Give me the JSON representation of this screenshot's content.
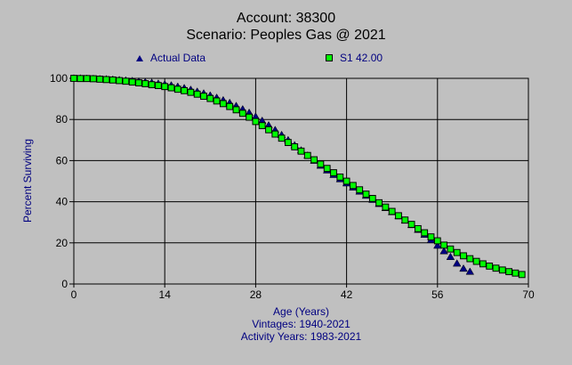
{
  "chart": {
    "title": "Account: 38300",
    "subtitle": "Scenario: Peoples Gas @ 2021",
    "ylabel": "Percent Surviving",
    "xlabel": "Age (Years)",
    "footer_lines": [
      "Vintages: 1940-2021",
      "Activity Years: 1983-2021"
    ],
    "legend": [
      {
        "label": "Actual Data",
        "marker": "triangle",
        "color": "#000080"
      },
      {
        "label": "S1 42.00",
        "marker": "square",
        "color": "#00ff00"
      }
    ],
    "colors": {
      "background": "#c0c0c0",
      "grid": "#000000",
      "text_navy": "#000080",
      "text_black": "#000000",
      "actual_marker": "#000080",
      "curve_marker": "#00ff00"
    }
  },
  "chart_data": {
    "type": "scatter",
    "title": "Account: 38300",
    "subtitle": "Scenario: Peoples Gas @ 2021",
    "xlabel": "Age (Years)",
    "ylabel": "Percent Surviving",
    "xlim": [
      0,
      70
    ],
    "ylim": [
      0,
      100
    ],
    "x_ticks": [
      0,
      14,
      28,
      42,
      56,
      70
    ],
    "y_ticks": [
      0,
      20,
      40,
      60,
      80,
      100
    ],
    "grid": true,
    "legend_position": "top",
    "series": [
      {
        "name": "Actual Data",
        "marker": "triangle",
        "color": "#000080",
        "x": [
          0,
          1,
          2,
          3,
          4,
          5,
          6,
          7,
          8,
          9,
          10,
          11,
          12,
          13,
          14,
          15,
          16,
          17,
          18,
          19,
          20,
          21,
          22,
          23,
          24,
          25,
          26,
          27,
          28,
          29,
          30,
          31,
          32,
          33,
          34,
          35,
          36,
          37,
          38,
          39,
          40,
          41,
          42,
          43,
          44,
          45,
          46,
          47,
          48,
          49,
          50,
          51,
          52,
          53,
          54,
          55,
          56,
          57,
          58,
          59,
          60,
          61
        ],
        "y": [
          100,
          100,
          99.9,
          99.8,
          99.7,
          99.6,
          99.4,
          99.2,
          99,
          98.8,
          98.5,
          98.2,
          97.9,
          97.5,
          97.1,
          96.6,
          96,
          95.3,
          94.5,
          93.6,
          92.7,
          91.7,
          90.6,
          89.4,
          88.1,
          86.6,
          85,
          83.3,
          81.4,
          79.4,
          77.2,
          74.9,
          72.5,
          70,
          67.5,
          65,
          62.5,
          60,
          57.6,
          55.3,
          53.1,
          51,
          49,
          47,
          45,
          43,
          41,
          39,
          37,
          35,
          33,
          30.9,
          28.7,
          26.4,
          24,
          21.4,
          18.7,
          16,
          13.2,
          10,
          7.5,
          6
        ]
      },
      {
        "name": "S1 42.00",
        "marker": "square",
        "color": "#00ff00",
        "x": [
          0,
          1,
          2,
          3,
          4,
          5,
          6,
          7,
          8,
          9,
          10,
          11,
          12,
          13,
          14,
          15,
          16,
          17,
          18,
          19,
          20,
          21,
          22,
          23,
          24,
          25,
          26,
          27,
          28,
          29,
          30,
          31,
          32,
          33,
          34,
          35,
          36,
          37,
          38,
          39,
          40,
          41,
          42,
          43,
          44,
          45,
          46,
          47,
          48,
          49,
          50,
          51,
          52,
          53,
          54,
          55,
          56,
          57,
          58,
          59,
          60,
          61,
          62,
          63,
          64,
          65,
          66,
          67,
          68,
          69
        ],
        "y": [
          100,
          99.9,
          99.9,
          99.8,
          99.6,
          99.4,
          99.2,
          98.9,
          98.6,
          98.2,
          97.8,
          97.4,
          96.9,
          96.5,
          96,
          95.4,
          94.7,
          94,
          93.2,
          92.3,
          91.3,
          90.2,
          89,
          87.7,
          86.3,
          84.7,
          83,
          81.1,
          79,
          77,
          75,
          72.9,
          70.9,
          68.8,
          66.7,
          64.6,
          62.5,
          60.4,
          58.3,
          56.2,
          54.1,
          52,
          50,
          47.9,
          45.8,
          43.7,
          41.6,
          39.5,
          37.4,
          35.3,
          33.2,
          31.1,
          29,
          26.9,
          24.9,
          22.9,
          21,
          18.9,
          17,
          15.3,
          13.7,
          12.3,
          11,
          9.8,
          8.7,
          7.7,
          6.8,
          6,
          5.3,
          4.6
        ]
      }
    ]
  }
}
